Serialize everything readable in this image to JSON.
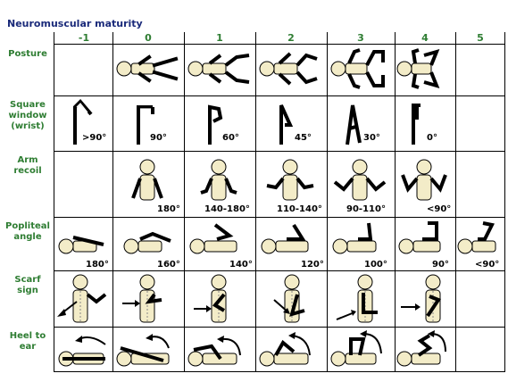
{
  "title": "Neuromuscular maturity",
  "columns": [
    "-1",
    "0",
    "1",
    "2",
    "3",
    "4",
    "5"
  ],
  "rows": [
    {
      "label": "Posture",
      "values": [
        "",
        "",
        "",
        "",
        "",
        "",
        ""
      ]
    },
    {
      "label": "Square window (wrist)",
      "values": [
        ">90°",
        "90°",
        "60°",
        "45°",
        "30°",
        "0°",
        ""
      ]
    },
    {
      "label": "Arm recoil",
      "values": [
        "",
        "180°",
        "140-180°",
        "110-140°",
        "90-110°",
        "<90°",
        ""
      ]
    },
    {
      "label": "Popliteal angle",
      "values": [
        "180°",
        "160°",
        "140°",
        "120°",
        "100°",
        "90°",
        "<90°"
      ]
    },
    {
      "label": "Scarf sign",
      "values": [
        "",
        "",
        "",
        "",
        "",
        "",
        ""
      ]
    },
    {
      "label": "Heel to ear",
      "values": [
        "",
        "",
        "",
        "",
        "",
        "",
        ""
      ]
    }
  ],
  "colors": {
    "title": "#1a2a7a",
    "label": "#2e7d32",
    "body": "#f3ecc8",
    "outline": "#000000",
    "grid": "#000000"
  }
}
